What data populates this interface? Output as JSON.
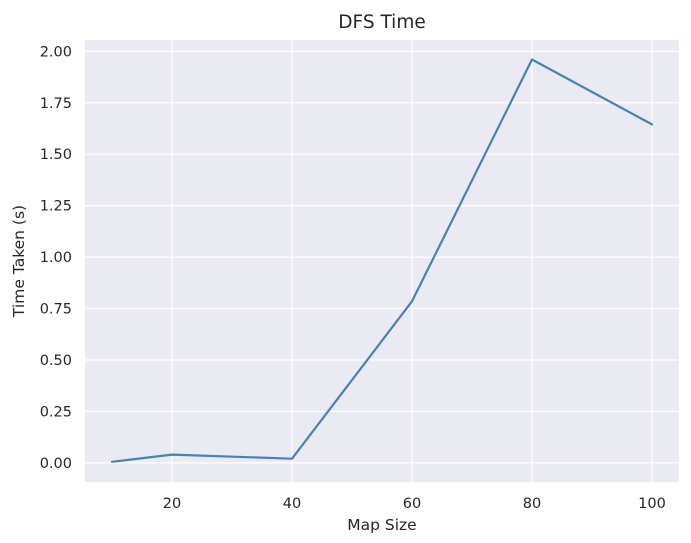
{
  "chart_data": {
    "type": "line",
    "title": "DFS Time",
    "xlabel": "Map Size",
    "ylabel": "Time Taken (s)",
    "x": [
      10,
      20,
      40,
      60,
      80,
      100
    ],
    "series": [
      {
        "values": [
          0.005,
          0.04,
          0.02,
          0.785,
          1.96,
          1.645
        ]
      }
    ],
    "xticks": [
      20,
      40,
      60,
      80,
      100
    ],
    "xtick_labels": [
      "20",
      "40",
      "60",
      "80",
      "100"
    ],
    "yticks": [
      0.0,
      0.25,
      0.5,
      0.75,
      1.0,
      1.25,
      1.5,
      1.75,
      2.0
    ],
    "ytick_labels": [
      "0.00",
      "0.25",
      "0.50",
      "0.75",
      "1.00",
      "1.25",
      "1.50",
      "1.75",
      "2.00"
    ],
    "xlim": [
      5.5,
      104.5
    ],
    "ylim": [
      -0.093,
      2.055
    ],
    "grid": true,
    "legend": "none",
    "colors": {
      "background": "#EAEAF2",
      "grid": "#FFFFFF",
      "line": "#4C7FBA",
      "text": "#262626"
    }
  }
}
